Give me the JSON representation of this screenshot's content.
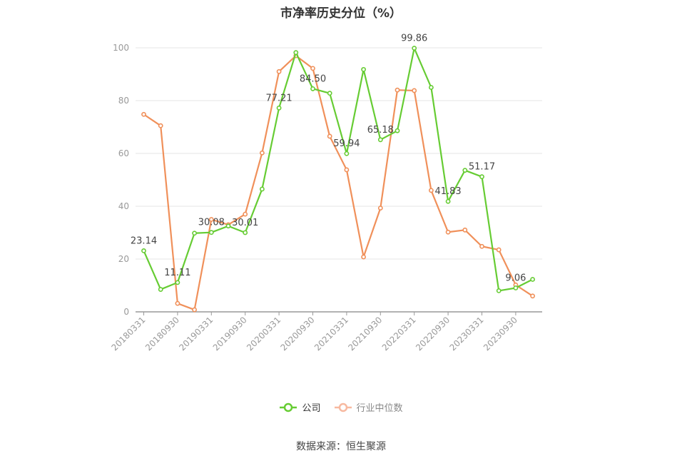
{
  "chart_data": {
    "type": "line",
    "title": "市净率历史分位（%）",
    "categories": [
      "20180331",
      "20180630",
      "20180930",
      "20181231",
      "20190331",
      "20190630",
      "20190930",
      "20191231",
      "20200331",
      "20200630",
      "20200930",
      "20201231",
      "20210331",
      "20210630",
      "20210930",
      "20211231",
      "20220331",
      "20220630",
      "20220930",
      "20221231",
      "20230331",
      "20230630",
      "20230930",
      "20231231"
    ],
    "x_tick_labels": [
      "20180331",
      "20180930",
      "20190331",
      "20190930",
      "20200331",
      "20200930",
      "20210331",
      "20210930",
      "20220331",
      "20220930",
      "20230331",
      "20230930"
    ],
    "ylim": [
      0,
      100
    ],
    "y_ticks": [
      0,
      20,
      40,
      60,
      80,
      100
    ],
    "grid": true,
    "legend_position": "bottom",
    "series": [
      {
        "name": "公司",
        "color": "#66cc33",
        "values": [
          23.14,
          8.5,
          11.11,
          29.8,
          30.08,
          32.5,
          30.01,
          46.5,
          77.21,
          98.2,
          84.5,
          82.8,
          59.94,
          91.8,
          65.18,
          68.6,
          99.86,
          85.0,
          41.83,
          53.6,
          51.17,
          8.0,
          9.06,
          12.3
        ],
        "labels": [
          {
            "index": 0,
            "text": "23.14"
          },
          {
            "index": 2,
            "text": "11.11"
          },
          {
            "index": 4,
            "text": "30.08"
          },
          {
            "index": 6,
            "text": "30.01"
          },
          {
            "index": 8,
            "text": "77.21"
          },
          {
            "index": 10,
            "text": "84.50"
          },
          {
            "index": 12,
            "text": "59.94"
          },
          {
            "index": 14,
            "text": "65.18"
          },
          {
            "index": 16,
            "text": "99.86"
          },
          {
            "index": 18,
            "text": "41.83"
          },
          {
            "index": 20,
            "text": "51.17"
          },
          {
            "index": 22,
            "text": "9.06"
          }
        ]
      },
      {
        "name": "行业中位数",
        "color": "#f0905a",
        "values": [
          74.8,
          70.5,
          3.2,
          0.8,
          35.0,
          33.0,
          37.0,
          60.2,
          91.0,
          97.0,
          92.2,
          66.5,
          53.8,
          20.8,
          39.3,
          84.0,
          83.8,
          46.0,
          30.2,
          31.0,
          24.8,
          23.5,
          10.2,
          6.0
        ]
      }
    ]
  },
  "legend": {
    "company": "公司",
    "industry": "行业中位数"
  },
  "source": "数据来源：恒生聚源"
}
